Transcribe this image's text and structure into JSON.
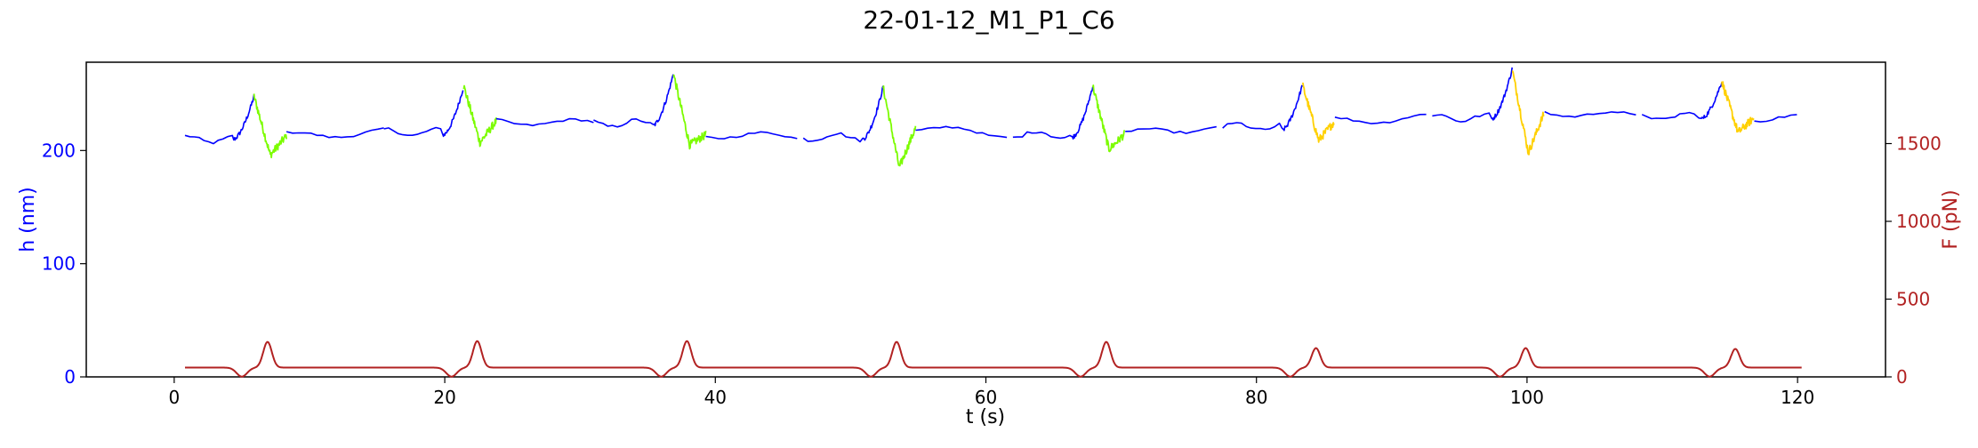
{
  "chart_data": {
    "type": "line",
    "title": "22-01-12_M1_P1_C6",
    "xlabel": "t (s)",
    "ylabel_left": "h (nm)",
    "ylabel_right": "F (pN)",
    "xlim": [
      -6.5,
      126.5
    ],
    "ylim_left": [
      0,
      278
    ],
    "ylim_right": [
      0,
      2023
    ],
    "x_ticks": [
      0,
      20,
      40,
      60,
      80,
      100,
      120
    ],
    "y_ticks_left": [
      0,
      100,
      200
    ],
    "y_ticks_right": [
      0,
      500,
      1000,
      1500
    ],
    "grid": false,
    "colors": {
      "h_blue": "#0000ff",
      "h_green": "#7cfc00",
      "h_yellow": "#ffd000",
      "force": "#b22222",
      "left_axis_text": "#0000ff",
      "right_axis_text": "#b22222"
    },
    "cycles": [
      {
        "t0": 0,
        "h_base": 210,
        "rise_from": 210,
        "peak": 248,
        "trough": 196,
        "recover": 213,
        "relax_color": "#7cfc00",
        "f_peak": 225
      },
      {
        "t0": 15.5,
        "h_base": 216,
        "rise_from": 214,
        "peak": 257,
        "trough": 207,
        "recover": 226,
        "relax_color": "#7cfc00",
        "f_peak": 230
      },
      {
        "t0": 31,
        "h_base": 224,
        "rise_from": 222,
        "peak": 268,
        "trough": 205,
        "recover": 214,
        "relax_color": "#7cfc00",
        "f_peak": 230
      },
      {
        "t0": 46.5,
        "h_base": 212,
        "rise_from": 210,
        "peak": 256,
        "trough": 185,
        "recover": 220,
        "relax_color": "#7cfc00",
        "f_peak": 225
      },
      {
        "t0": 62,
        "h_base": 214,
        "rise_from": 212,
        "peak": 257,
        "trough": 201,
        "recover": 215,
        "relax_color": "#7cfc00",
        "f_peak": 225
      },
      {
        "t0": 77.5,
        "h_base": 221,
        "rise_from": 218,
        "peak": 258,
        "trough": 209,
        "recover": 226,
        "relax_color": "#ffd000",
        "f_peak": 185
      },
      {
        "t0": 93,
        "h_base": 229,
        "rise_from": 228,
        "peak": 272,
        "trough": 198,
        "recover": 234,
        "relax_color": "#ffd000",
        "f_peak": 185
      },
      {
        "t0": 108.5,
        "h_base": 230,
        "rise_from": 228,
        "peak": 261,
        "trough": 216,
        "recover": 229,
        "relax_color": "#ffd000",
        "f_peak": 180
      }
    ],
    "t_end": 120.3,
    "force_baseline": 60
  }
}
